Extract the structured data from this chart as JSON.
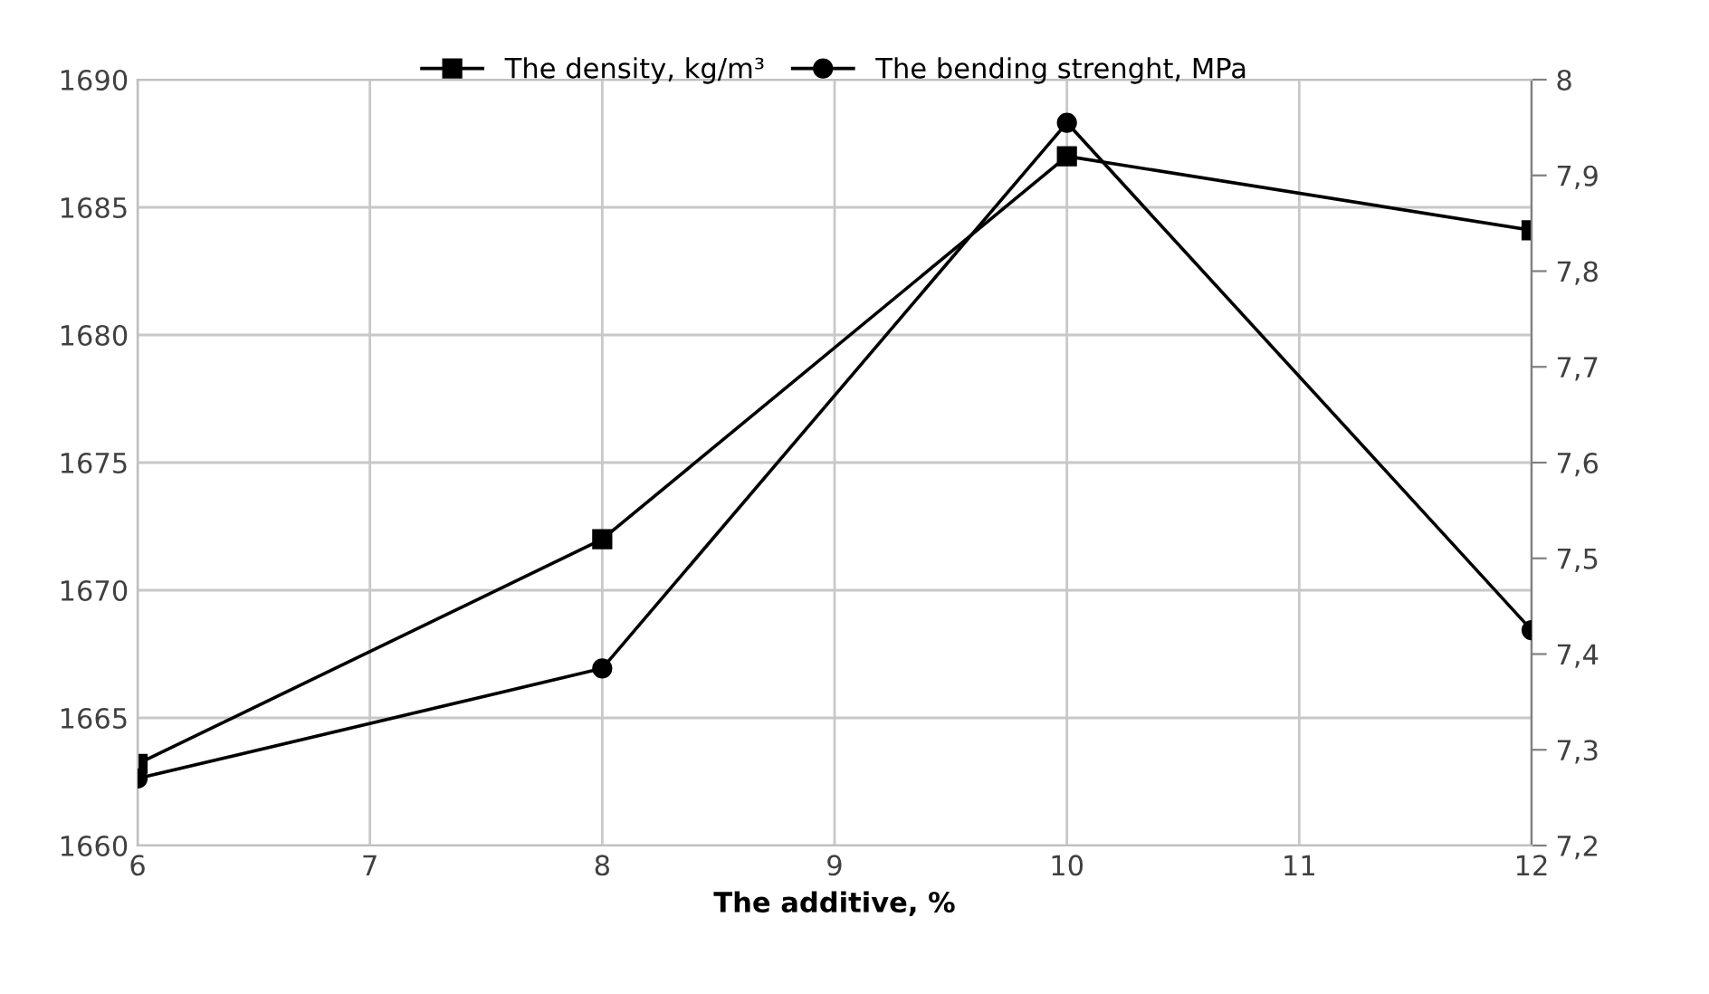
{
  "chart_data": {
    "type": "line",
    "xlabel": "The additive, %",
    "x": [
      6,
      8,
      10,
      12
    ],
    "series": [
      {
        "name": "The density, kg/m³",
        "color": "#000000",
        "marker": "square",
        "values": [
          1663.2,
          1672,
          1687,
          1684.1
        ]
      },
      {
        "name": "The bending strenght, MPa",
        "color": "#000000",
        "marker": "circle",
        "axis": "y2",
        "values": [
          7.27,
          7.385,
          7.955,
          7.425
        ]
      }
    ],
    "xlim": [
      6,
      12
    ],
    "xticks": [
      6,
      7,
      8,
      9,
      10,
      11,
      12
    ],
    "ylim": [
      1660,
      1690
    ],
    "yticks": [
      1660,
      1665,
      1670,
      1675,
      1680,
      1685,
      1690
    ],
    "y2lim": [
      7.2,
      8
    ],
    "y2ticks": [
      {
        "value": 7.2,
        "label": "7,2"
      },
      {
        "value": 7.3,
        "label": "7,3"
      },
      {
        "value": 7.4,
        "label": "7,4"
      },
      {
        "value": 7.5,
        "label": "7,5"
      },
      {
        "value": 7.6,
        "label": "7,6"
      },
      {
        "value": 7.7,
        "label": "7,7"
      },
      {
        "value": 7.8,
        "label": "7,8"
      },
      {
        "value": 7.9,
        "label": "7,9"
      },
      8
    ],
    "grid": true,
    "legend": "top",
    "line_style": "solid"
  }
}
